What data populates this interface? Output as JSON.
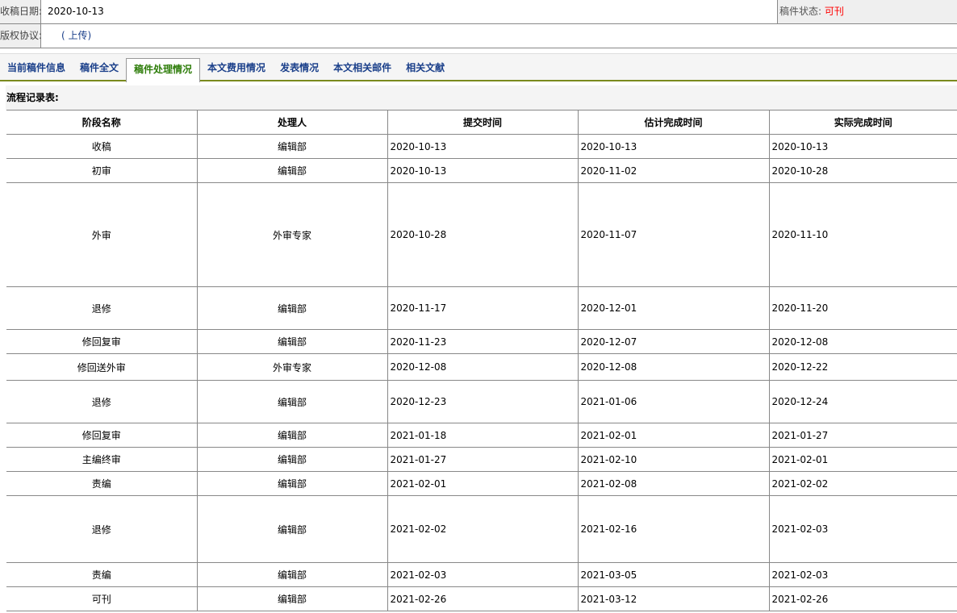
{
  "info": {
    "received_label": "收稿日期:",
    "received_value": "2020-10-13",
    "status_label": "稿件状态:",
    "status_value": "可刊",
    "copyright_label": "版权协议:",
    "upload_link": "( 上传)"
  },
  "tabs": [
    {
      "label": "当前稿件信息",
      "active": false
    },
    {
      "label": "稿件全文",
      "active": false
    },
    {
      "label": "稿件处理情况",
      "active": true
    },
    {
      "label": "本文费用情况",
      "active": false
    },
    {
      "label": "发表情况",
      "active": false
    },
    {
      "label": "本文相关邮件",
      "active": false
    },
    {
      "label": "相关文献",
      "active": false
    }
  ],
  "table": {
    "title": "流程记录表:",
    "headers": [
      "阶段名称",
      "处理人",
      "提交时间",
      "估计完成时间",
      "实际完成时间"
    ],
    "rows": [
      [
        "收稿",
        "编辑部",
        "2020-10-13",
        "2020-10-13",
        "2020-10-13"
      ],
      [
        "初审",
        "编辑部",
        "2020-10-13",
        "2020-11-02",
        "2020-10-28"
      ],
      [
        "外审",
        "外审专家",
        "2020-10-28",
        "2020-11-07",
        "2020-11-10"
      ],
      [
        "退修",
        "编辑部",
        "2020-11-17",
        "2020-12-01",
        "2020-11-20"
      ],
      [
        "修回复审",
        "编辑部",
        "2020-11-23",
        "2020-12-07",
        "2020-12-08"
      ],
      [
        "修回送外审",
        "外审专家",
        "2020-12-08",
        "2020-12-08",
        "2020-12-22"
      ],
      [
        "退修",
        "编辑部",
        "2020-12-23",
        "2021-01-06",
        "2020-12-24"
      ],
      [
        "修回复审",
        "编辑部",
        "2021-01-18",
        "2021-02-01",
        "2021-01-27"
      ],
      [
        "主编终审",
        "编辑部",
        "2021-01-27",
        "2021-02-10",
        "2021-02-01"
      ],
      [
        "责编",
        "编辑部",
        "2021-02-01",
        "2021-02-08",
        "2021-02-02"
      ],
      [
        "退修",
        "编辑部",
        "2021-02-02",
        "2021-02-16",
        "2021-02-03"
      ],
      [
        "责编",
        "编辑部",
        "2021-02-03",
        "2021-03-05",
        "2021-02-03"
      ],
      [
        "可刊",
        "编辑部",
        "2021-02-26",
        "2021-03-12",
        "2021-02-26"
      ]
    ]
  }
}
